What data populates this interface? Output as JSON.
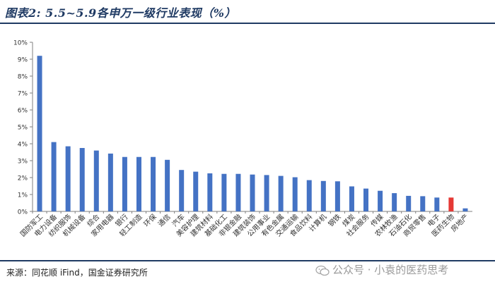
{
  "header": {
    "title": "图表2: 5.5~5.9各申万一级行业表现（%）"
  },
  "footer": {
    "source": "来源：同花顺 iFind，国金证券研究所"
  },
  "watermark": {
    "text": "公众号 · 小袁的医药思考",
    "icon": "wechat-icon"
  },
  "chart_data": {
    "type": "bar",
    "title": "",
    "xlabel": "",
    "ylabel": "",
    "ylim": [
      0,
      10
    ],
    "yticks": [
      "0%",
      "1%",
      "2%",
      "3%",
      "4%",
      "5%",
      "6%",
      "7%",
      "8%",
      "9%",
      "10%"
    ],
    "grid": false,
    "categories": [
      "国防军工",
      "电力设备",
      "纺织服饰",
      "机械设备",
      "综合",
      "家用电器",
      "银行",
      "轻工制造",
      "环保",
      "通信",
      "汽车",
      "美容护理",
      "建筑材料",
      "基础化工",
      "非银金融",
      "建筑装饰",
      "公用事业",
      "有色金属",
      "交通运输",
      "食品饮料",
      "计算机",
      "钢铁",
      "煤炭",
      "社会服务",
      "传媒",
      "农林牧渔",
      "石油石化",
      "商贸零售",
      "电子",
      "医药生物",
      "房地产"
    ],
    "values": [
      9.2,
      4.1,
      3.85,
      3.75,
      3.6,
      3.42,
      3.22,
      3.22,
      3.22,
      3.05,
      2.45,
      2.35,
      2.25,
      2.22,
      2.22,
      2.18,
      2.15,
      2.1,
      2.02,
      1.85,
      1.8,
      1.78,
      1.48,
      1.35,
      1.22,
      1.08,
      0.92,
      0.9,
      0.82,
      0.82,
      0.18
    ],
    "colors": {
      "default": "#4472c4",
      "highlight": "#e53935",
      "axis": "#7f7f7f",
      "text": "#333333"
    },
    "highlight": "医药生物"
  }
}
